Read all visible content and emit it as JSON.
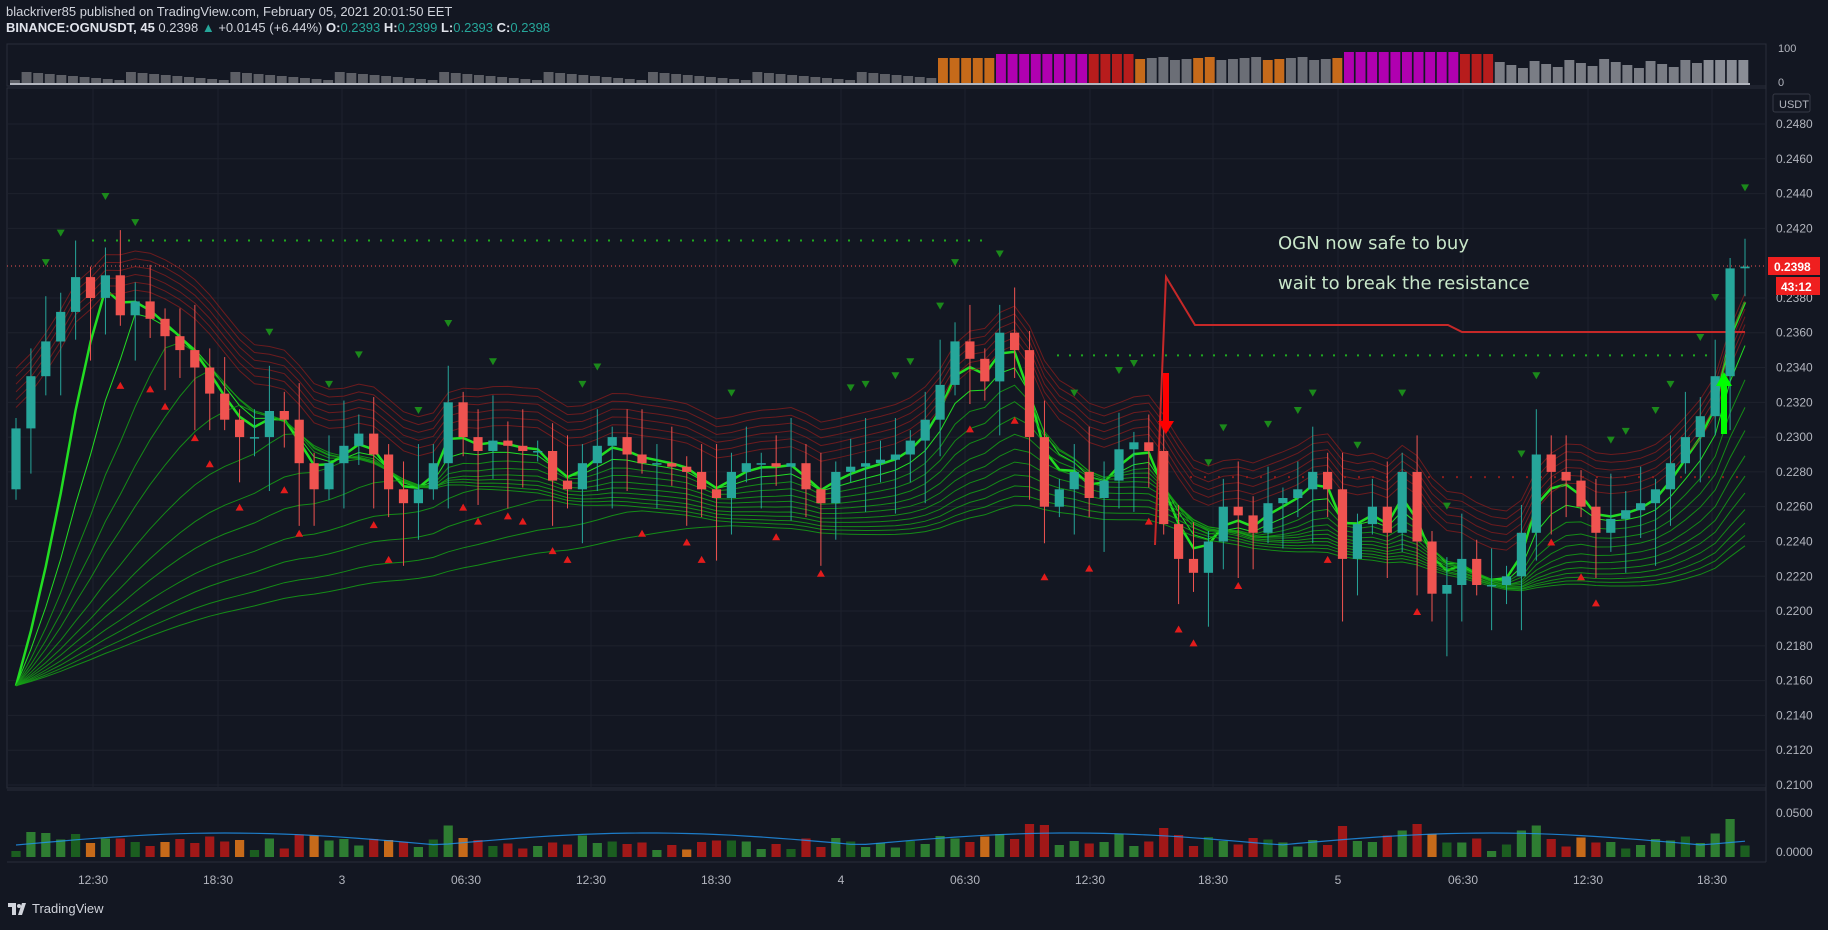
{
  "header": {
    "line1": "blackriver85 published on TradingView.com, February 05, 2021 20:01:50 EET",
    "symbol": "BINANCE:OGNUSDT, 45",
    "last": "0.2398",
    "change": "+0.0145 (+6.44%)",
    "o_label": "O:",
    "o_value": "0.2393",
    "h_label": "H:",
    "h_value": "0.2399",
    "l_label": "L:",
    "l_value": "0.2393",
    "c_label": "C:",
    "c_value": "0.2398"
  },
  "footer": {
    "brand": "TradingView"
  },
  "price_badge": {
    "value": "0.2398",
    "countdown": "43:12"
  },
  "currency": "USDT",
  "annotations": [
    "OGN now safe to buy",
    "wait to break the resistance"
  ],
  "colors": {
    "up": "#26a69a",
    "down": "#ef5350",
    "bg": "#131722",
    "ema": "#1ec51e",
    "resistance": "#b71c1c"
  },
  "chart_data": {
    "type": "candlestick",
    "price_axis": {
      "ticks": [
        "0.2480",
        "0.2460",
        "0.2440",
        "0.2420",
        "0.2380",
        "0.2360",
        "0.2340",
        "0.2320",
        "0.2300",
        "0.2280",
        "0.2260",
        "0.2240",
        "0.2220",
        "0.2200",
        "0.2180",
        "0.2160",
        "0.2140",
        "0.2120",
        "0.2100"
      ],
      "ylim": [
        0.209,
        0.2498
      ]
    },
    "volume_axis": {
      "ticks": [
        "0.0500",
        "0.0000"
      ]
    },
    "oscillator_axis": {
      "ticks": [
        "100",
        "0"
      ]
    },
    "time_axis": [
      "12:30",
      "18:30",
      "3",
      "06:30",
      "12:30",
      "18:30",
      "4",
      "06:30",
      "12:30",
      "18:30",
      "5",
      "06:30",
      "12:30",
      "18:30"
    ],
    "resistance_levels": [
      0.2413,
      0.2347,
      0.2277
    ],
    "close": [
      0.2305,
      0.2335,
      0.2355,
      0.2372,
      0.2392,
      0.238,
      0.2393,
      0.237,
      0.2378,
      0.2368,
      0.2358,
      0.235,
      0.234,
      0.2325,
      0.231,
      0.23,
      0.23,
      0.2315,
      0.231,
      0.2285,
      0.227,
      0.2285,
      0.2295,
      0.2302,
      0.229,
      0.227,
      0.2262,
      0.227,
      0.2285,
      0.232,
      0.23,
      0.2292,
      0.2298,
      0.2295,
      0.2292,
      0.2292,
      0.2275,
      0.227,
      0.2285,
      0.2295,
      0.23,
      0.229,
      0.2285,
      0.2285,
      0.2283,
      0.228,
      0.227,
      0.2265,
      0.228,
      0.2285,
      0.2285,
      0.2283,
      0.2285,
      0.227,
      0.2262,
      0.228,
      0.2283,
      0.2285,
      0.2287,
      0.229,
      0.2298,
      0.231,
      0.233,
      0.2355,
      0.2345,
      0.2332,
      0.236,
      0.235,
      0.23,
      0.226,
      0.227,
      0.228,
      0.2265,
      0.2275,
      0.2293,
      0.2297,
      0.2292,
      0.225,
      0.223,
      0.2222,
      0.224,
      0.226,
      0.2255,
      0.2245,
      0.2262,
      0.2265,
      0.227,
      0.228,
      0.227,
      0.223,
      0.225,
      0.226,
      0.2245,
      0.228,
      0.224,
      0.221,
      0.2215,
      0.223,
      0.2215,
      0.2215,
      0.222,
      0.2245,
      0.229,
      0.228,
      0.2275,
      0.226,
      0.2245,
      0.2253,
      0.2258,
      0.2262,
      0.227,
      0.2285,
      0.23,
      0.2312,
      0.2335,
      0.2397,
      0.2398
    ]
  }
}
